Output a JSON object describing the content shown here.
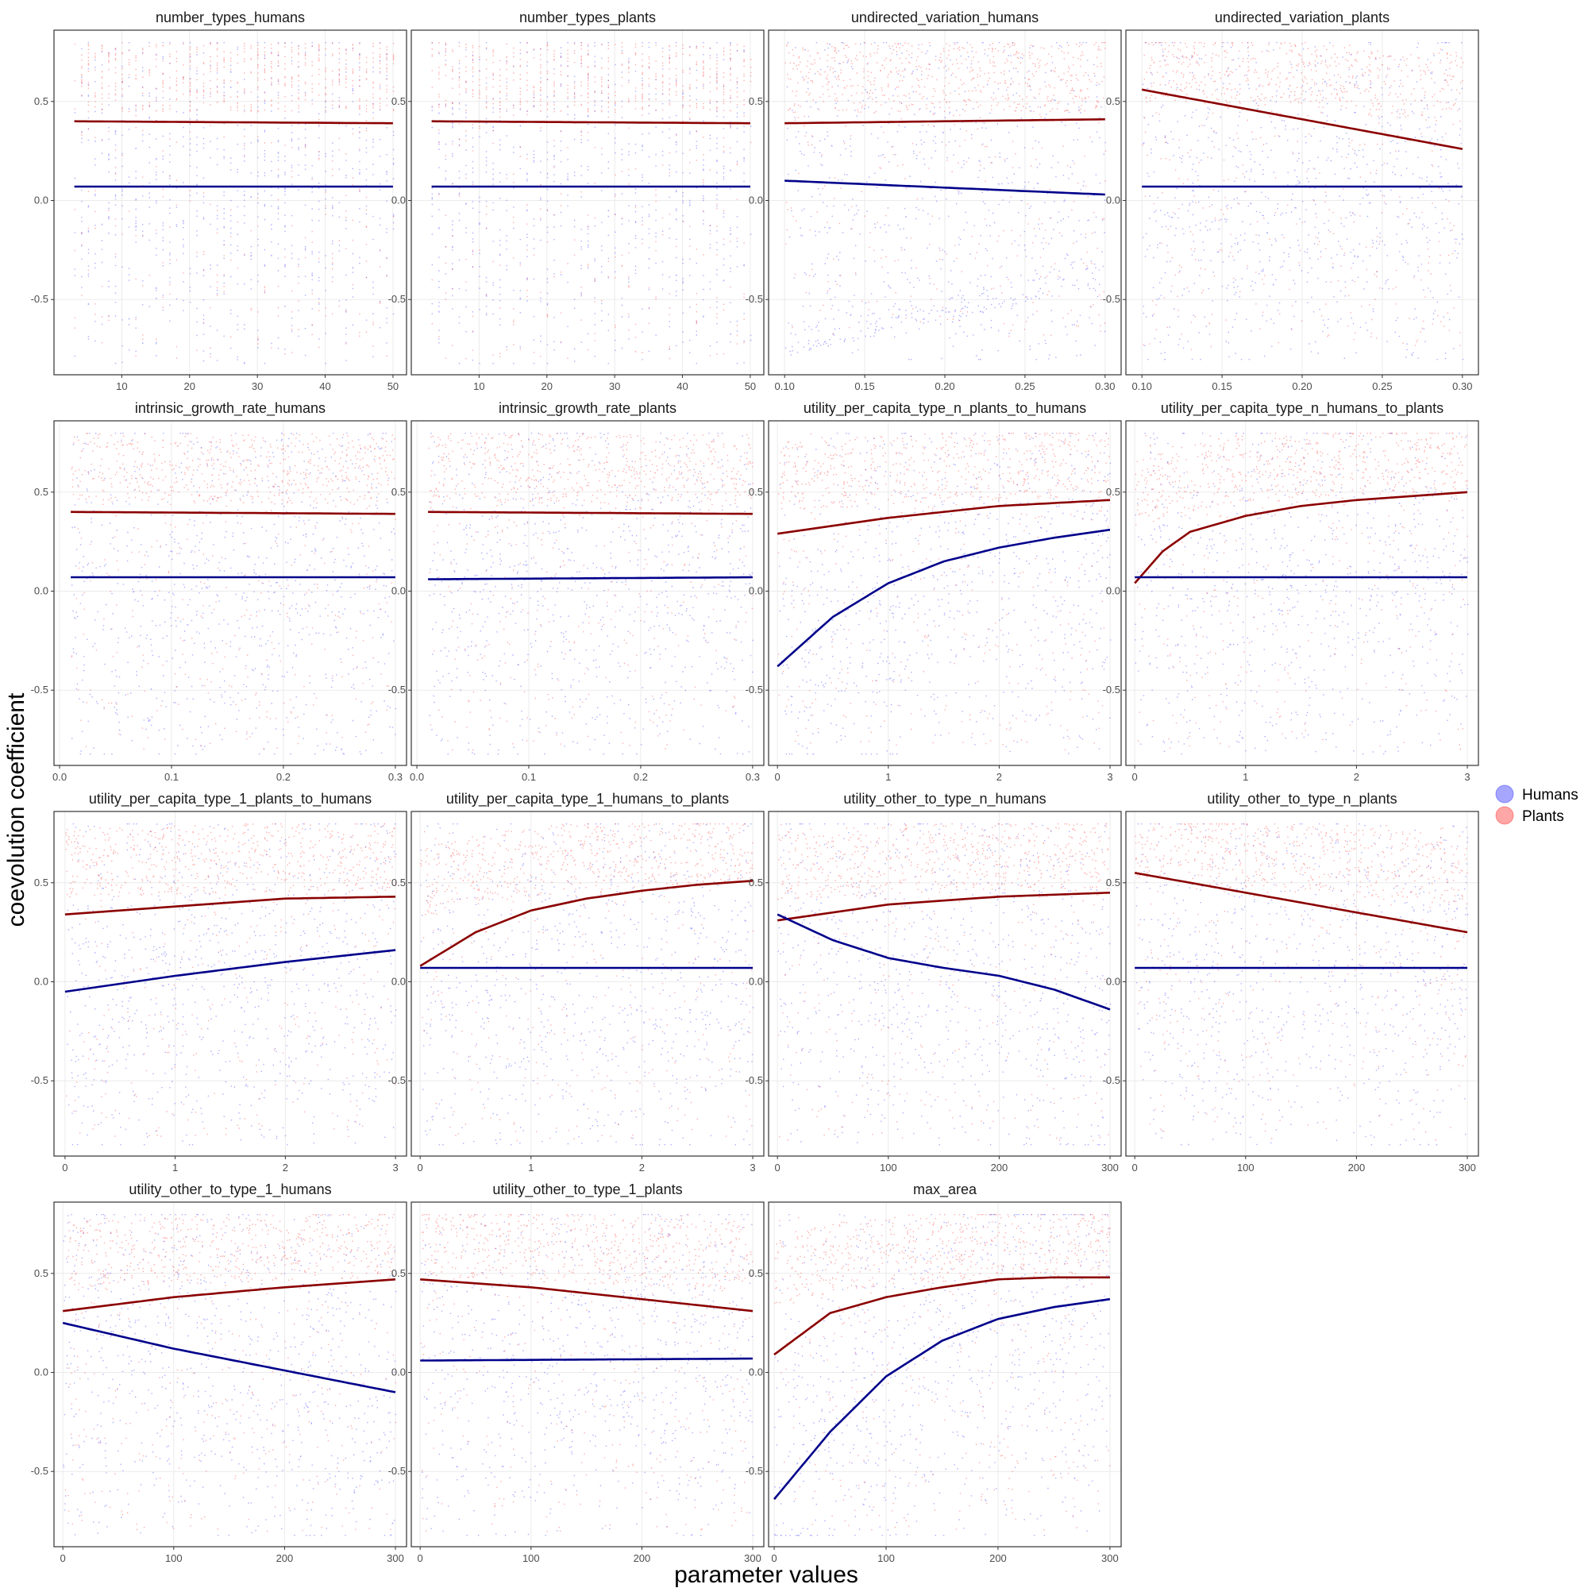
{
  "figure": {
    "xlabel": "parameter values",
    "ylabel": "coevolution coefficient"
  },
  "legend": {
    "position": "right",
    "items": [
      {
        "label": "Humans",
        "color": "#0000ff",
        "line_color": "#00008b"
      },
      {
        "label": "Plants",
        "color": "#ff0000",
        "line_color": "#8b0000"
      }
    ]
  },
  "chart_data": {
    "type": "scatter",
    "layout": "facet-grid-4-columns",
    "grid": true,
    "point_alpha": 0.3,
    "y_ticks": [
      -0.5,
      0.0,
      0.5
    ],
    "y_tick_labels": [
      "-0.5",
      "0.0",
      "0.5"
    ],
    "ylim": [
      -0.88,
      0.86
    ],
    "panels": [
      {
        "title": "number_types_humans",
        "xlim": [
          0,
          52
        ],
        "x_ticks": [
          10,
          20,
          30,
          40,
          50
        ],
        "x_tick_labels": [
          "10",
          "20",
          "30",
          "40",
          "50"
        ],
        "x_range": [
          3,
          50
        ],
        "discrete_x": true,
        "humans": {
          "x": [
            3,
            50
          ],
          "trend": [
            0.07,
            0.07
          ],
          "y_range": [
            -0.82,
            0.8
          ]
        },
        "plants": {
          "x": [
            3,
            50
          ],
          "trend": [
            0.4,
            0.39
          ],
          "y_range": [
            -0.8,
            0.8
          ],
          "skew": 0.3
        }
      },
      {
        "title": "number_types_plants",
        "xlim": [
          0,
          52
        ],
        "x_ticks": [
          10,
          20,
          30,
          40,
          50
        ],
        "x_tick_labels": [
          "10",
          "20",
          "30",
          "40",
          "50"
        ],
        "x_range": [
          3,
          50
        ],
        "discrete_x": true,
        "humans": {
          "x": [
            3,
            50
          ],
          "trend": [
            0.07,
            0.07
          ],
          "y_range": [
            -0.82,
            0.8
          ]
        },
        "plants": {
          "x": [
            3,
            50
          ],
          "trend": [
            0.4,
            0.39
          ],
          "y_range": [
            -0.8,
            0.8
          ],
          "skew": 0.3
        }
      },
      {
        "title": "undirected_variation_humans",
        "xlim": [
          0.09,
          0.31
        ],
        "x_ticks": [
          0.1,
          0.15,
          0.2,
          0.25,
          0.3
        ],
        "x_tick_labels": [
          "0.10",
          "0.15",
          "0.20",
          "0.25",
          "0.30"
        ],
        "x_range": [
          0.1,
          0.3
        ],
        "humans": {
          "x": [
            0.1,
            0.3
          ],
          "trend": [
            0.1,
            0.03
          ],
          "y_range": [
            -0.8,
            0.8
          ],
          "bimodal": true
        },
        "plants": {
          "x": [
            0.1,
            0.3
          ],
          "trend": [
            0.39,
            0.41
          ],
          "y_range": [
            -0.7,
            0.8
          ],
          "skew": 0.3
        }
      },
      {
        "title": "undirected_variation_plants",
        "xlim": [
          0.09,
          0.31
        ],
        "x_ticks": [
          0.1,
          0.15,
          0.2,
          0.25,
          0.3
        ],
        "x_tick_labels": [
          "0.10",
          "0.15",
          "0.20",
          "0.25",
          "0.30"
        ],
        "x_range": [
          0.1,
          0.3
        ],
        "humans": {
          "x": [
            0.1,
            0.3
          ],
          "trend": [
            0.07,
            0.07
          ],
          "y_range": [
            -0.8,
            0.8
          ]
        },
        "plants": {
          "x": [
            0.1,
            0.3
          ],
          "trend": [
            0.56,
            0.26
          ],
          "y_range": [
            -0.75,
            0.8
          ],
          "skew": 0.3
        }
      },
      {
        "title": "intrinsic_growth_rate_humans",
        "xlim": [
          -0.005,
          0.31
        ],
        "x_ticks": [
          0.0,
          0.1,
          0.2,
          0.3
        ],
        "x_tick_labels": [
          "0.0",
          "0.1",
          "0.2",
          "0.3"
        ],
        "x_range": [
          0.01,
          0.3
        ],
        "humans": {
          "x": [
            0.01,
            0.3
          ],
          "trend": [
            0.07,
            0.07
          ],
          "y_range": [
            -0.82,
            0.8
          ]
        },
        "plants": {
          "x": [
            0.01,
            0.3
          ],
          "trend": [
            0.4,
            0.39
          ],
          "y_range": [
            -0.8,
            0.8
          ],
          "skew": 0.3
        }
      },
      {
        "title": "intrinsic_growth_rate_plants",
        "xlim": [
          -0.005,
          0.31
        ],
        "x_ticks": [
          0.0,
          0.1,
          0.2,
          0.3
        ],
        "x_tick_labels": [
          "0.0",
          "0.1",
          "0.2",
          "0.3"
        ],
        "x_range": [
          0.01,
          0.3
        ],
        "humans": {
          "x": [
            0.01,
            0.3
          ],
          "trend": [
            0.06,
            0.07
          ],
          "y_range": [
            -0.82,
            0.8
          ]
        },
        "plants": {
          "x": [
            0.01,
            0.3
          ],
          "trend": [
            0.4,
            0.39
          ],
          "y_range": [
            -0.8,
            0.8
          ],
          "skew": 0.3
        }
      },
      {
        "title": "utility_per_capita_type_n_plants_to_humans",
        "xlim": [
          -0.08,
          3.1
        ],
        "x_ticks": [
          0,
          1,
          2,
          3
        ],
        "x_tick_labels": [
          "0",
          "1",
          "2",
          "3"
        ],
        "x_range": [
          0,
          3
        ],
        "humans": {
          "x": [
            0,
            0.5,
            1,
            1.5,
            2,
            2.5,
            3
          ],
          "trend": [
            -0.38,
            -0.13,
            0.04,
            0.15,
            0.22,
            0.27,
            0.31
          ],
          "y_range": [
            -0.82,
            0.8
          ]
        },
        "plants": {
          "x": [
            0,
            1,
            2,
            3
          ],
          "trend": [
            0.29,
            0.37,
            0.43,
            0.46
          ],
          "y_range": [
            -0.8,
            0.8
          ],
          "skew": 0.3
        }
      },
      {
        "title": "utility_per_capita_type_n_humans_to_plants",
        "xlim": [
          -0.08,
          3.1
        ],
        "x_ticks": [
          0,
          1,
          2,
          3
        ],
        "x_tick_labels": [
          "0",
          "1",
          "2",
          "3"
        ],
        "x_range": [
          0,
          3
        ],
        "humans": {
          "x": [
            0,
            3
          ],
          "trend": [
            0.07,
            0.07
          ],
          "y_range": [
            -0.82,
            0.8
          ]
        },
        "plants": {
          "x": [
            0,
            0.25,
            0.5,
            1,
            1.5,
            2,
            2.5,
            3
          ],
          "trend": [
            0.04,
            0.2,
            0.3,
            0.38,
            0.43,
            0.46,
            0.48,
            0.5
          ],
          "y_range": [
            -0.8,
            0.8
          ],
          "skew": 0.3
        }
      },
      {
        "title": "utility_per_capita_type_1_plants_to_humans",
        "xlim": [
          -0.1,
          3.1
        ],
        "x_ticks": [
          0,
          1,
          2,
          3
        ],
        "x_tick_labels": [
          "0",
          "1",
          "2",
          "3"
        ],
        "x_range": [
          0,
          3
        ],
        "humans": {
          "x": [
            0,
            1,
            2,
            3
          ],
          "trend": [
            -0.05,
            0.03,
            0.1,
            0.16
          ],
          "y_range": [
            -0.82,
            0.8
          ]
        },
        "plants": {
          "x": [
            0,
            1,
            2,
            3
          ],
          "trend": [
            0.34,
            0.38,
            0.42,
            0.43
          ],
          "y_range": [
            -0.8,
            0.8
          ],
          "skew": 0.3
        }
      },
      {
        "title": "utility_per_capita_type_1_humans_to_plants",
        "xlim": [
          -0.08,
          3.1
        ],
        "x_ticks": [
          0,
          1,
          2,
          3
        ],
        "x_tick_labels": [
          "0",
          "1",
          "2",
          "3"
        ],
        "x_range": [
          0,
          3
        ],
        "humans": {
          "x": [
            0,
            3
          ],
          "trend": [
            0.07,
            0.07
          ],
          "y_range": [
            -0.82,
            0.8
          ]
        },
        "plants": {
          "x": [
            0,
            0.5,
            1,
            1.5,
            2,
            2.5,
            3
          ],
          "trend": [
            0.08,
            0.25,
            0.36,
            0.42,
            0.46,
            0.49,
            0.51
          ],
          "y_range": [
            -0.8,
            0.8
          ],
          "skew": 0.3
        }
      },
      {
        "title": "utility_other_to_type_n_humans",
        "xlim": [
          -8,
          310
        ],
        "x_ticks": [
          0,
          100,
          200,
          300
        ],
        "x_tick_labels": [
          "0",
          "100",
          "200",
          "300"
        ],
        "x_range": [
          0,
          300
        ],
        "humans": {
          "x": [
            0,
            50,
            100,
            150,
            200,
            250,
            300
          ],
          "trend": [
            0.34,
            0.21,
            0.12,
            0.07,
            0.03,
            -0.04,
            -0.14
          ],
          "y_range": [
            -0.82,
            0.8
          ]
        },
        "plants": {
          "x": [
            0,
            100,
            200,
            300
          ],
          "trend": [
            0.31,
            0.39,
            0.43,
            0.45
          ],
          "y_range": [
            -0.8,
            0.8
          ],
          "skew": 0.3
        }
      },
      {
        "title": "utility_other_to_type_n_plants",
        "xlim": [
          -8,
          310
        ],
        "x_ticks": [
          0,
          100,
          200,
          300
        ],
        "x_tick_labels": [
          "0",
          "100",
          "200",
          "300"
        ],
        "x_range": [
          0,
          300
        ],
        "humans": {
          "x": [
            0,
            300
          ],
          "trend": [
            0.07,
            0.07
          ],
          "y_range": [
            -0.82,
            0.8
          ]
        },
        "plants": {
          "x": [
            0,
            100,
            200,
            300
          ],
          "trend": [
            0.55,
            0.45,
            0.35,
            0.25
          ],
          "y_range": [
            -0.8,
            0.8
          ],
          "skew": 0.3
        }
      },
      {
        "title": "utility_other_to_type_1_humans",
        "xlim": [
          -8,
          310
        ],
        "x_ticks": [
          0,
          100,
          200,
          300
        ],
        "x_tick_labels": [
          "0",
          "100",
          "200",
          "300"
        ],
        "x_range": [
          0,
          300
        ],
        "humans": {
          "x": [
            0,
            100,
            200,
            300
          ],
          "trend": [
            0.25,
            0.12,
            0.01,
            -0.1
          ],
          "y_range": [
            -0.82,
            0.8
          ]
        },
        "plants": {
          "x": [
            0,
            100,
            200,
            300
          ],
          "trend": [
            0.31,
            0.38,
            0.43,
            0.47
          ],
          "y_range": [
            -0.8,
            0.8
          ],
          "skew": 0.3
        }
      },
      {
        "title": "utility_other_to_type_1_plants",
        "xlim": [
          -8,
          310
        ],
        "x_ticks": [
          0,
          100,
          200,
          300
        ],
        "x_tick_labels": [
          "0",
          "100",
          "200",
          "300"
        ],
        "x_range": [
          0,
          300
        ],
        "humans": {
          "x": [
            0,
            300
          ],
          "trend": [
            0.06,
            0.07
          ],
          "y_range": [
            -0.82,
            0.8
          ]
        },
        "plants": {
          "x": [
            0,
            100,
            200,
            300
          ],
          "trend": [
            0.47,
            0.43,
            0.37,
            0.31
          ],
          "y_range": [
            -0.8,
            0.8
          ],
          "skew": 0.3
        }
      },
      {
        "title": "max_area",
        "xlim": [
          -5,
          310
        ],
        "x_ticks": [
          0,
          100,
          200,
          300
        ],
        "x_tick_labels": [
          "0",
          "100",
          "200",
          "300"
        ],
        "x_range": [
          0,
          300
        ],
        "humans": {
          "x": [
            0,
            50,
            100,
            150,
            200,
            250,
            300
          ],
          "trend": [
            -0.64,
            -0.3,
            -0.02,
            0.16,
            0.27,
            0.33,
            0.37
          ],
          "y_range": [
            -0.82,
            0.8
          ]
        },
        "plants": {
          "x": [
            0,
            50,
            100,
            150,
            200,
            250,
            300
          ],
          "trend": [
            0.09,
            0.3,
            0.38,
            0.43,
            0.47,
            0.48,
            0.48
          ],
          "y_range": [
            -0.8,
            0.8
          ],
          "skew": 0.3
        }
      }
    ]
  }
}
